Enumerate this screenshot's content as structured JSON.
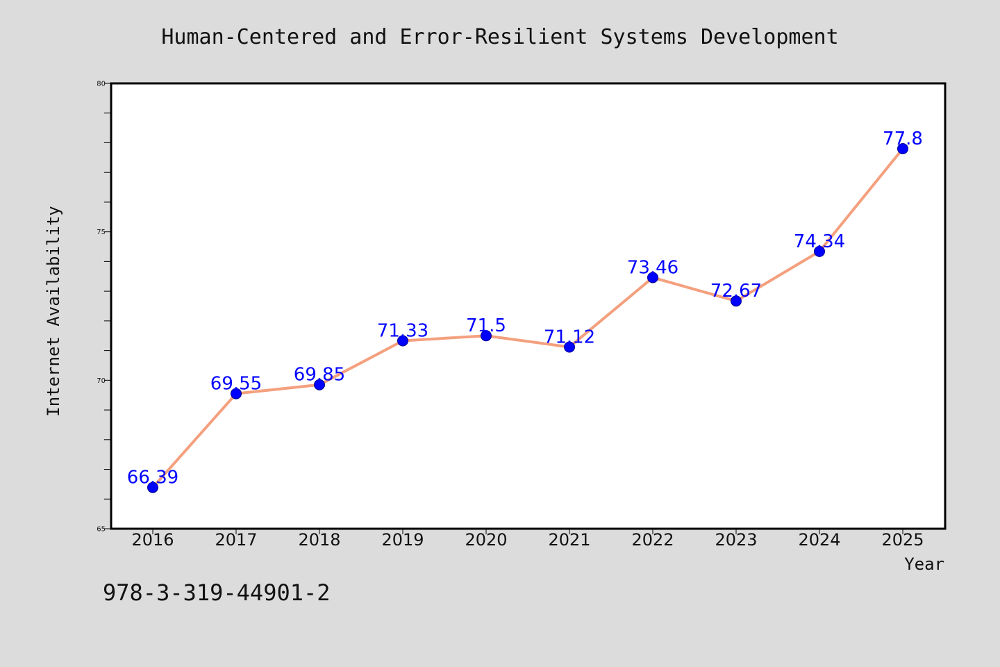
{
  "chart_data": {
    "type": "line",
    "title": "Human-Centered and Error-Resilient Systems Development",
    "xlabel": "Year",
    "ylabel": "Internet Availability",
    "categories": [
      "2016",
      "2017",
      "2018",
      "2019",
      "2020",
      "2021",
      "2022",
      "2023",
      "2024",
      "2025"
    ],
    "series": [
      {
        "values": [
          66.39,
          69.55,
          69.85,
          71.33,
          71.5,
          71.12,
          73.46,
          72.67,
          74.34,
          77.8
        ],
        "data_labels": [
          "66.39",
          "69.55",
          "69.85",
          "71.33",
          "71.5",
          "71.12",
          "73.46",
          "72.67",
          "74.34",
          "77.8"
        ]
      }
    ],
    "ylim": [
      65,
      80
    ],
    "y_major_ticks": [
      65,
      70,
      75,
      80
    ],
    "y_minor_step": 1,
    "grid": false,
    "colors": {
      "line": "#f4a07e",
      "marker": "#0000ff",
      "marker_edge": "#00008b",
      "label": "#0000ff",
      "plot_background": "#ffffff",
      "figure_background": "#dcdcdc"
    }
  },
  "footnote": "978-3-319-44901-2"
}
